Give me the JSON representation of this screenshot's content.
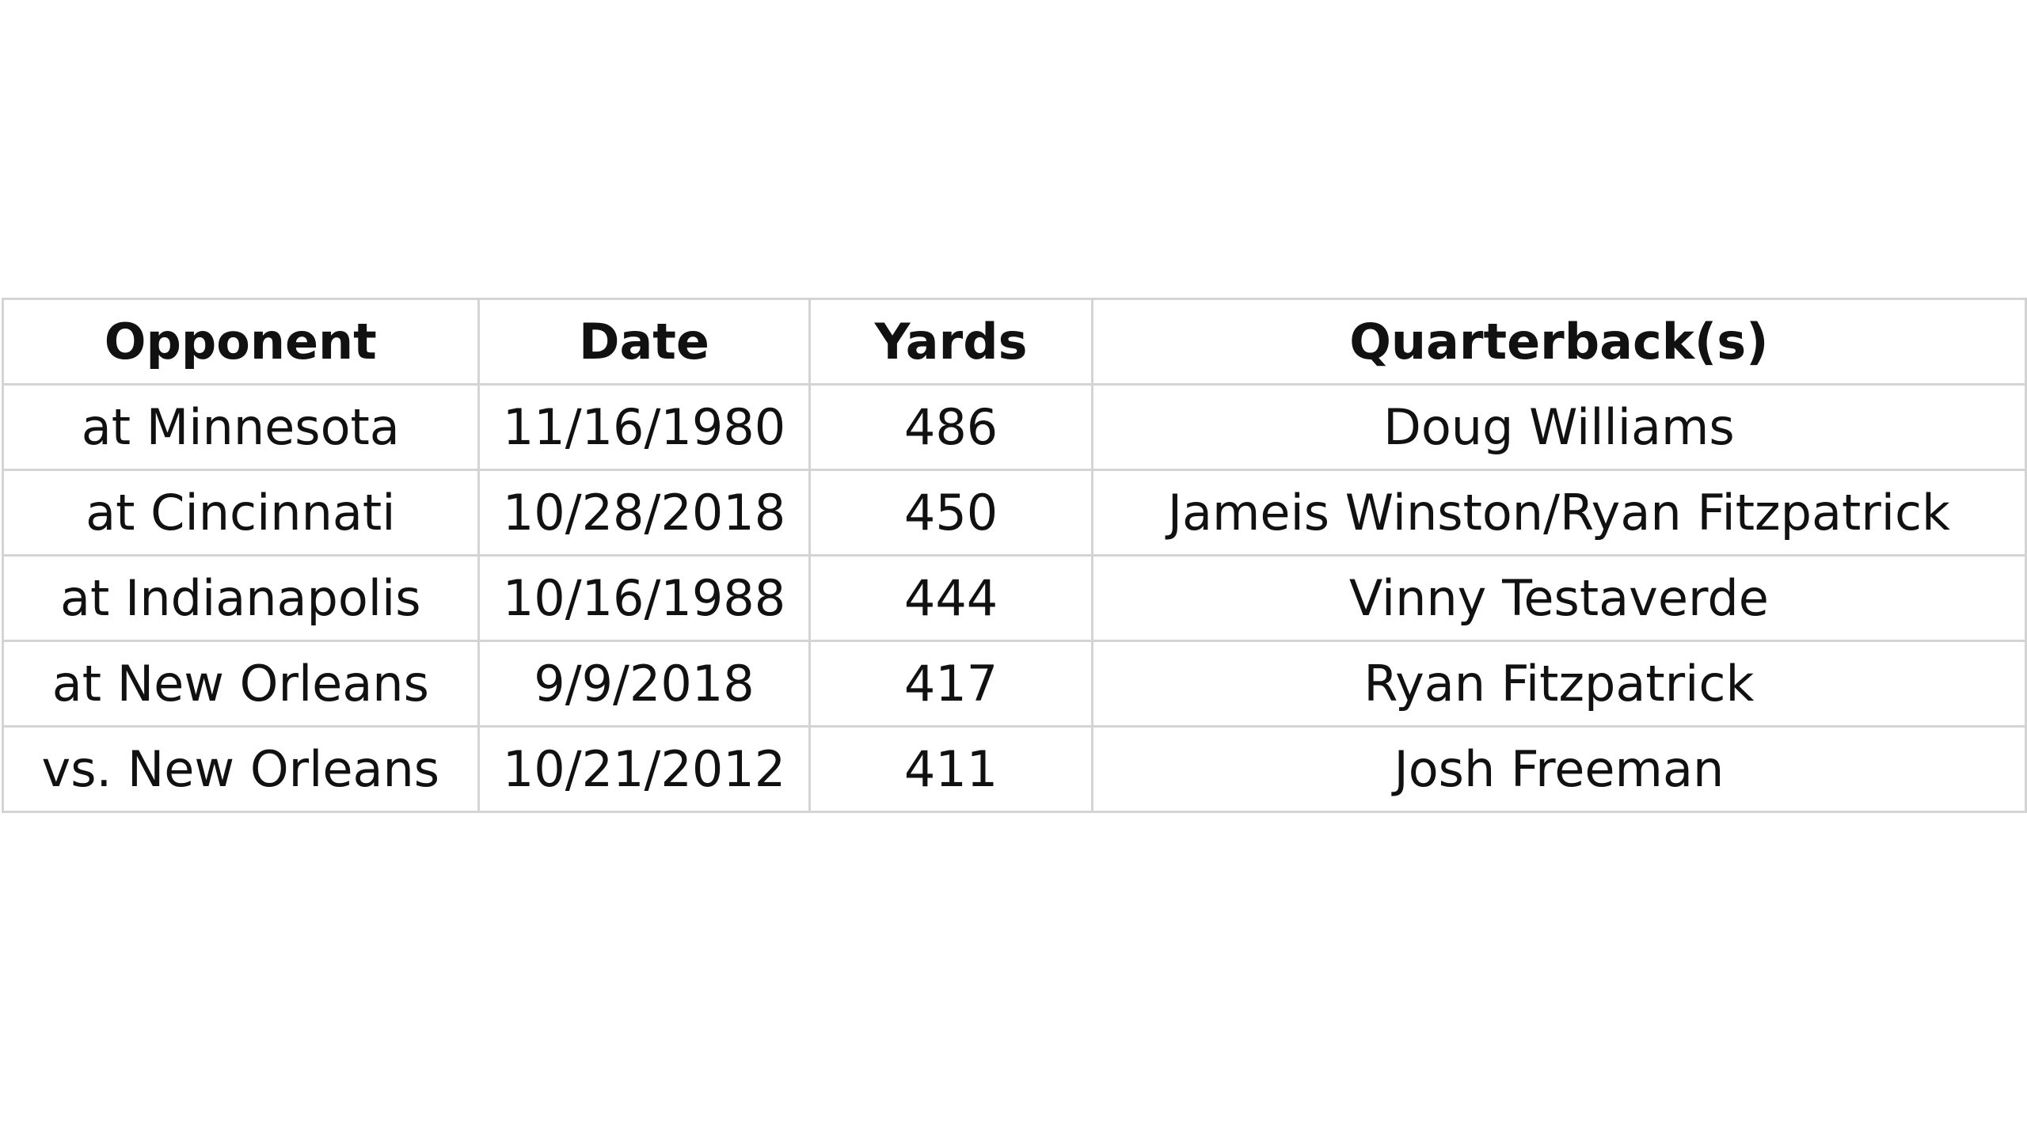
{
  "table": {
    "columns": [
      "Opponent",
      "Date",
      "Yards",
      "Quarterback(s)"
    ],
    "rows": [
      [
        "at Minnesota",
        "11/16/1980",
        "486",
        "Doug Williams"
      ],
      [
        "at Cincinnati",
        "10/28/2018",
        "450",
        "Jameis Winston/Ryan Fitzpatrick"
      ],
      [
        "at Indianapolis",
        "10/16/1988",
        "444",
        "Vinny Testaverde"
      ],
      [
        "at New Orleans",
        "9/9/2018",
        "417",
        "Ryan Fitzpatrick"
      ],
      [
        "vs. New Orleans",
        "10/21/2012",
        "411",
        "Josh Freeman"
      ]
    ]
  },
  "colors": {
    "background": "#ffffff",
    "gridline": "#d4d4d4",
    "text": "#111111"
  }
}
